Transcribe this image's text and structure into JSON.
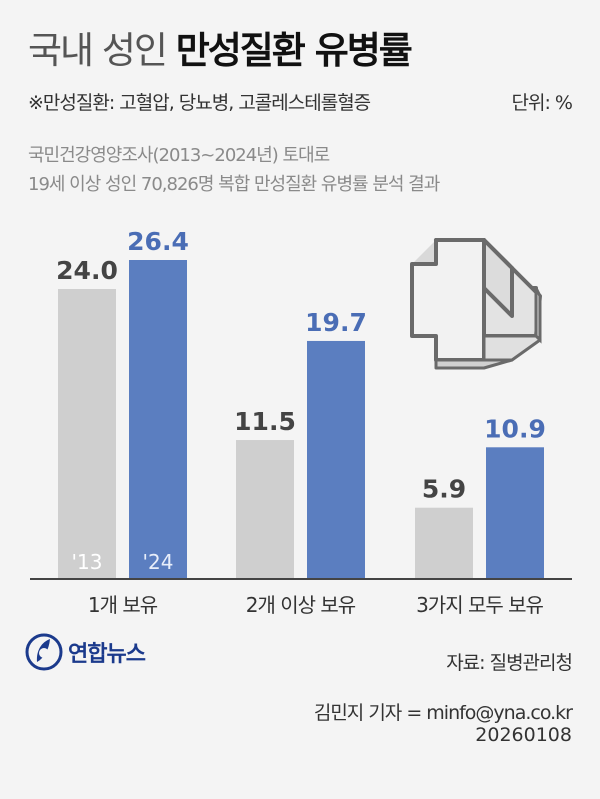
{
  "header": {
    "title_light": "국내 성인",
    "title_bold": "만성질환 유병률",
    "note": "※만성질환: 고혈압, 당뇨병, 고콜레스테롤혈증",
    "unit": "단위: %",
    "subtitle_line1": "국민건강영양조사(2013~2024년) 토대로",
    "subtitle_line2": "19세 이상 성인 70,826명 복합 만성질환 유병률 분석 결과"
  },
  "chart_data": {
    "type": "bar",
    "categories": [
      "1개 보유",
      "2개 이상 보유",
      "3가지 모두 보유"
    ],
    "series": [
      {
        "name": "'13",
        "values": [
          24.0,
          11.5,
          5.9
        ],
        "color": "#cfcfcf",
        "label_color": "#444444"
      },
      {
        "name": "'24",
        "values": [
          26.4,
          19.7,
          10.9
        ],
        "color": "#5b7ec0",
        "label_color": "#4a6db5"
      }
    ],
    "value_labels": [
      [
        "24.0",
        "11.5",
        "5.9"
      ],
      [
        "26.4",
        "19.7",
        "10.9"
      ]
    ],
    "ylim": [
      0,
      30
    ],
    "legend_placement": "inside-first-bars"
  },
  "footer": {
    "logo_text": "연합뉴스",
    "logo_icon": "yonhap-logo-icon",
    "source": "자료: 질병관리청",
    "credit": "김민지 기자 = minfo@yna.co.kr",
    "date": "20260108"
  },
  "decoration": {
    "icon": "medical-cross-icon"
  }
}
